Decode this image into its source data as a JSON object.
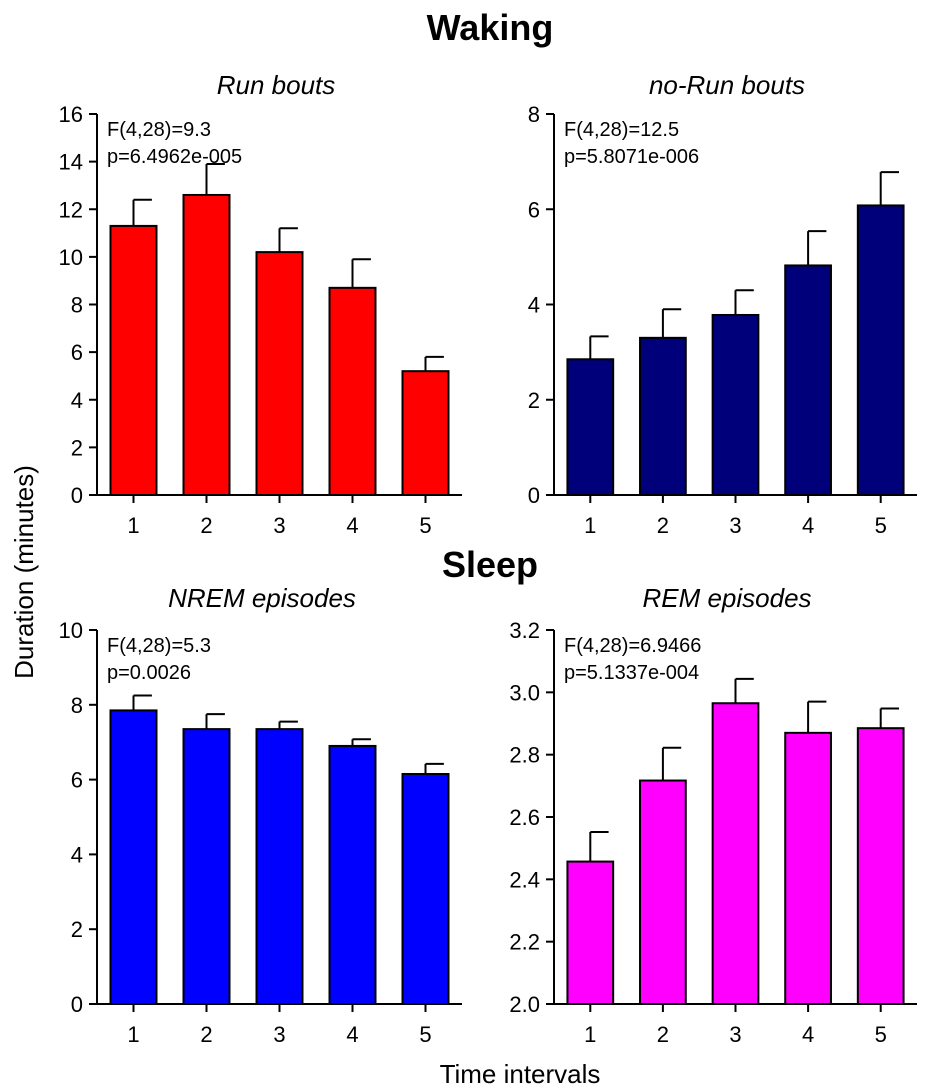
{
  "figure": {
    "section_top": "Waking",
    "section_bottom": "Sleep",
    "ylabel": "Duration (minutes)",
    "xlabel": "Time intervals"
  },
  "chart_data": [
    {
      "type": "bar",
      "title": "Run bouts",
      "categories": [
        "1",
        "2",
        "3",
        "4",
        "5"
      ],
      "values": [
        11.3,
        12.6,
        10.2,
        8.7,
        5.2
      ],
      "errors": [
        1.1,
        1.3,
        1.0,
        1.2,
        0.6
      ],
      "ylim": [
        0,
        16
      ],
      "yticks": [
        "0",
        "2",
        "4",
        "6",
        "8",
        "10",
        "12",
        "14",
        "16"
      ],
      "annotation": [
        "F(4,28)=9.3",
        "p=6.4962e-005"
      ],
      "color": "#ff0000"
    },
    {
      "type": "bar",
      "title": "no-Run bouts",
      "categories": [
        "1",
        "2",
        "3",
        "4",
        "5"
      ],
      "values": [
        2.85,
        3.3,
        3.78,
        4.82,
        6.08
      ],
      "errors": [
        0.48,
        0.6,
        0.52,
        0.72,
        0.7
      ],
      "ylim": [
        0,
        8
      ],
      "yticks": [
        "0",
        "2",
        "4",
        "6",
        "8"
      ],
      "annotation": [
        "F(4,28)=12.5",
        "p=5.8071e-006"
      ],
      "color": "#00007a"
    },
    {
      "type": "bar",
      "title": "NREM episodes",
      "categories": [
        "1",
        "2",
        "3",
        "4",
        "5"
      ],
      "values": [
        7.85,
        7.35,
        7.35,
        6.9,
        6.15
      ],
      "errors": [
        0.4,
        0.4,
        0.2,
        0.18,
        0.27
      ],
      "ylim": [
        0,
        10
      ],
      "yticks": [
        "0",
        "2",
        "4",
        "6",
        "8",
        "10"
      ],
      "annotation": [
        "F(4,28)=5.3",
        "p=0.0026"
      ],
      "color": "#0000ff"
    },
    {
      "type": "bar",
      "title": "REM episodes",
      "categories": [
        "1",
        "2",
        "3",
        "4",
        "5"
      ],
      "values": [
        2.457,
        2.717,
        2.965,
        2.87,
        2.885
      ],
      "errors": [
        0.095,
        0.105,
        0.078,
        0.1,
        0.063
      ],
      "ylim": [
        2.0,
        3.2
      ],
      "yticks": [
        "2.0",
        "2.2",
        "2.4",
        "2.6",
        "2.8",
        "3.0",
        "3.2"
      ],
      "annotation": [
        "F(4,28)=6.9466",
        "p=5.1337e-004"
      ],
      "color": "#ff00ff"
    }
  ]
}
